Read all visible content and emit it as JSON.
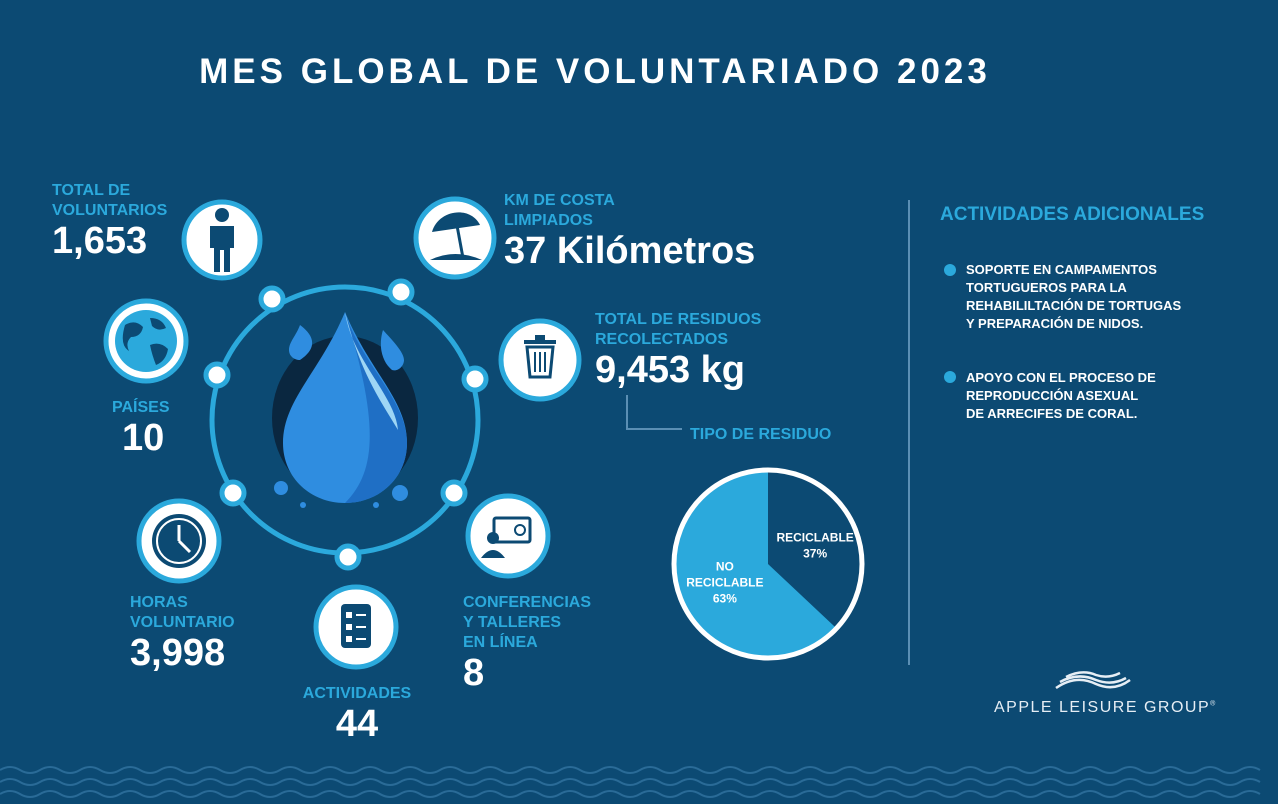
{
  "title": "MES GLOBAL DE VOLUNTARIADO 2023",
  "stats": {
    "voluntarios": {
      "label_l1": "TOTAL DE",
      "label_l2": "VOLUNTARIOS",
      "value": "1,653",
      "icon": "person-icon"
    },
    "costa": {
      "label_l1": "KM DE COSTA",
      "label_l2": "LIMPIADOS",
      "value": "37 Kilómetros",
      "icon": "beach-umbrella-icon"
    },
    "paises": {
      "label": "PAÍSES",
      "value": "10",
      "icon": "globe-icon"
    },
    "residuos": {
      "label_l1": "TOTAL DE RESIDUOS",
      "label_l2": "RECOLECTADOS",
      "value": "9,453 kg",
      "icon": "trash-can-icon"
    },
    "horas": {
      "label_l1": "HORAS",
      "label_l2": "VOLUNTARIO",
      "value": "3,998",
      "icon": "clock-icon"
    },
    "conferencias": {
      "label_l1": "CONFERENCIAS",
      "label_l2": "Y TALLERES",
      "label_l3": "EN LÍNEA",
      "value": "8",
      "icon": "online-presentation-icon"
    },
    "actividades": {
      "label": "ACTIVIDADES",
      "value": "44",
      "icon": "checklist-icon"
    }
  },
  "chart_data": {
    "type": "pie",
    "title": "TIPO DE RESIDUO",
    "categories": [
      "RECICLABLE",
      "NO RECICLABLE"
    ],
    "values": [
      37,
      63
    ],
    "value_labels": [
      "37%",
      "63%"
    ],
    "colors": [
      "#0c4a73",
      "#2ba9dc"
    ]
  },
  "additional": {
    "title": "ACTIVIDADES ADICIONALES",
    "items": [
      {
        "l1": "SOPORTE EN CAMPAMENTOS",
        "l2": "TORTUGUEROS PARA LA",
        "l3": "REHABILILTACIÓN DE TORTUGAS",
        "l4": "Y PREPARACIÓN DE NIDOS."
      },
      {
        "l1": "APOYO CON EL PROCESO DE",
        "l2": "REPRODUCCIÓN ASEXUAL",
        "l3": "DE ARRECIFES DE CORAL."
      }
    ]
  },
  "logo": {
    "text": "APPLE LEISURE GROUP",
    "mark": "®"
  },
  "colors": {
    "background": "#0c4a73",
    "accent": "#2ba9dc",
    "text": "#ffffff"
  }
}
